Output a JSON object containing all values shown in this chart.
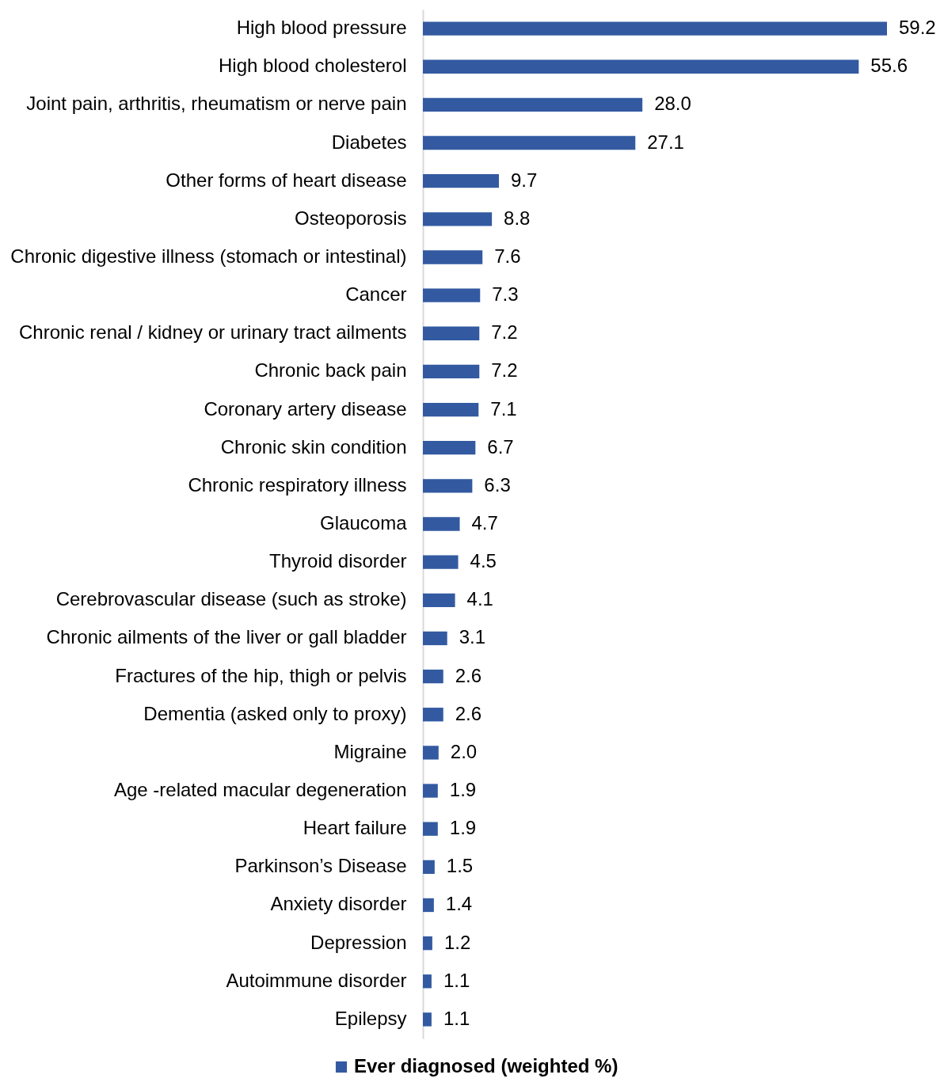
{
  "chart_data": {
    "type": "bar",
    "orientation": "horizontal",
    "legend": "bottom",
    "categories": [
      "High blood pressure",
      "High blood cholesterol",
      "Joint pain, arthritis, rheumatism or nerve pain",
      "Diabetes",
      "Other forms of heart disease",
      "Osteoporosis",
      "Chronic digestive illness (stomach or intestinal)",
      "Cancer",
      "Chronic renal / kidney or urinary tract ailments",
      "Chronic back pain",
      "Coronary artery disease",
      "Chronic skin condition",
      "Chronic respiratory illness",
      "Glaucoma",
      "Thyroid disorder",
      "Cerebrovascular disease (such as stroke)",
      "Chronic ailments of the liver or gall bladder",
      "Fractures of the hip, thigh or pelvis",
      "Dementia (asked only to proxy)",
      "Migraine",
      "Age -related macular degeneration",
      "Heart failure",
      "Parkinson’s Disease",
      "Anxiety disorder",
      "Depression",
      "Autoimmune disorder",
      "Epilepsy"
    ],
    "series": [
      {
        "name": "Ever diagnosed (weighted %)",
        "color": "#335aa1",
        "values": [
          59.2,
          55.6,
          28.0,
          27.1,
          9.7,
          8.8,
          7.6,
          7.3,
          7.2,
          7.2,
          7.1,
          6.7,
          6.3,
          4.7,
          4.5,
          4.1,
          3.1,
          2.6,
          2.6,
          2.0,
          1.9,
          1.9,
          1.5,
          1.4,
          1.2,
          1.1,
          1.1
        ],
        "value_labels": [
          "59.2",
          "55.6",
          "28.0",
          "27.1",
          "9.7",
          "8.8",
          "7.6",
          "7.3",
          "7.2",
          "7.2",
          "7.1",
          "6.7",
          "6.3",
          "4.7",
          "4.5",
          "4.1",
          "3.1",
          "2.6",
          "2.6",
          "2.0",
          "1.9",
          "1.9",
          "1.5",
          "1.4",
          "1.2",
          "1.1",
          "1.1"
        ]
      }
    ]
  }
}
